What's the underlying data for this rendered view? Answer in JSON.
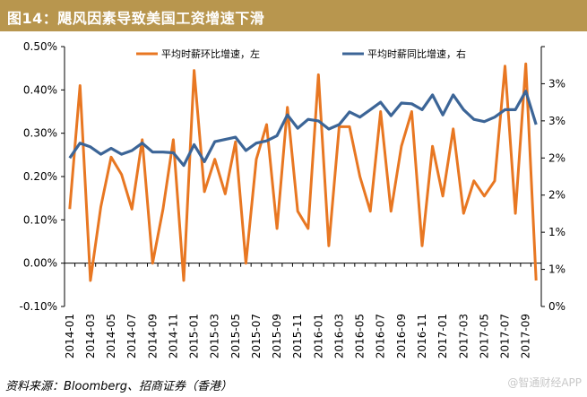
{
  "header": {
    "title": "图14：飓风因素导致美国工资增速下滑"
  },
  "footer": {
    "source": "资料来源：Bloomberg、招商证券（香港）",
    "watermark": "@智通财经APP"
  },
  "colors": {
    "title_bg": "#b8964e",
    "mom_series": "#e87722",
    "yoy_series": "#3c6597"
  },
  "chart_data": {
    "type": "line",
    "title": "",
    "x": [
      "2014-01",
      "2014-02",
      "2014-03",
      "2014-04",
      "2014-05",
      "2014-06",
      "2014-07",
      "2014-08",
      "2014-09",
      "2014-10",
      "2014-11",
      "2014-12",
      "2015-01",
      "2015-02",
      "2015-03",
      "2015-04",
      "2015-05",
      "2015-06",
      "2015-07",
      "2015-08",
      "2015-09",
      "2015-10",
      "2015-11",
      "2015-12",
      "2016-01",
      "2016-02",
      "2016-03",
      "2016-04",
      "2016-05",
      "2016-06",
      "2016-07",
      "2016-08",
      "2016-09",
      "2016-10",
      "2016-11",
      "2016-12",
      "2017-01",
      "2017-02",
      "2017-03",
      "2017-04",
      "2017-05",
      "2017-06",
      "2017-07",
      "2017-08",
      "2017-09",
      "2017-10"
    ],
    "x_tick_labels": [
      "2014-01",
      "2014-03",
      "2014-05",
      "2014-07",
      "2014-09",
      "2014-11",
      "2015-01",
      "2015-03",
      "2015-05",
      "2015-07",
      "2015-09",
      "2015-11",
      "2016-01",
      "2016-03",
      "2016-05",
      "2016-07",
      "2016-09",
      "2016-11",
      "2017-01",
      "2017-03",
      "2017-05",
      "2017-07",
      "2017-09"
    ],
    "left_axis": {
      "ylim": [
        -0.001,
        0.005
      ],
      "tick_labels": [
        "-0.10%",
        "0.00%",
        "0.10%",
        "0.20%",
        "0.30%",
        "0.40%",
        "0.50%"
      ],
      "tick_values": [
        -0.001,
        0,
        0.001,
        0.002,
        0.003,
        0.004,
        0.005
      ]
    },
    "right_axis": {
      "ylim": [
        0,
        3.5
      ],
      "tick_labels": [
        "0%",
        "1%",
        "1%",
        "2%",
        "2%",
        "3%",
        "3%"
      ],
      "tick_values": [
        0,
        0.5,
        1.0,
        1.5,
        2.0,
        2.5,
        3.0,
        3.5
      ]
    },
    "legend_position": "top",
    "series": [
      {
        "name": "平均时薪环比增速，左",
        "axis": "left",
        "values": [
          0.00125,
          0.0041,
          -0.0004,
          0.0013,
          0.00245,
          0.00205,
          0.00125,
          0.00285,
          0.0,
          0.00125,
          0.00285,
          -0.0004,
          0.00445,
          0.00165,
          0.0024,
          0.0016,
          0.0028,
          0.0,
          0.0024,
          0.0032,
          0.0008,
          0.0036,
          0.0012,
          0.0008,
          0.00435,
          0.0004,
          0.00315,
          0.00315,
          0.002,
          0.0012,
          0.0035,
          0.0012,
          0.0027,
          0.0035,
          0.0004,
          0.0027,
          0.00155,
          0.0031,
          0.00115,
          0.0019,
          0.00155,
          0.0019,
          0.00455,
          0.00115,
          0.0046,
          -0.0004
        ]
      },
      {
        "name": "平均时薪同比增速，右",
        "axis": "right",
        "values": [
          2.0,
          2.2,
          2.15,
          2.05,
          2.13,
          2.05,
          2.1,
          2.2,
          2.08,
          2.08,
          2.07,
          1.9,
          2.18,
          1.95,
          2.22,
          2.25,
          2.28,
          2.1,
          2.2,
          2.23,
          2.3,
          2.58,
          2.4,
          2.52,
          2.5,
          2.39,
          2.45,
          2.62,
          2.55,
          2.65,
          2.75,
          2.57,
          2.74,
          2.73,
          2.65,
          2.85,
          2.58,
          2.85,
          2.65,
          2.52,
          2.49,
          2.55,
          2.65,
          2.65,
          2.9,
          2.45
        ]
      }
    ]
  }
}
